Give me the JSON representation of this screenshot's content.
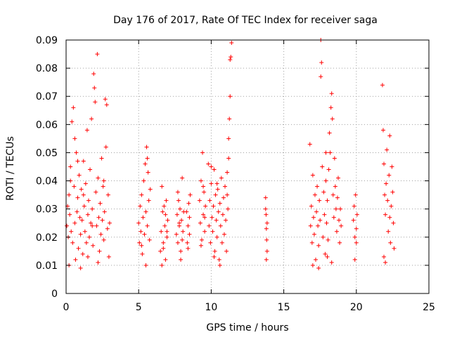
{
  "chart_data": {
    "type": "scatter",
    "title": "Day 176 of 2017, Rate Of TEC Index for receiver saga",
    "xlabel": "GPS time / hours",
    "ylabel": "ROTI / TECUs",
    "xlim": [
      0,
      25
    ],
    "ylim": [
      0,
      0.09
    ],
    "xticks": [
      0,
      5,
      10,
      15,
      20,
      25
    ],
    "xtick_labels": [
      "0",
      "5",
      "10",
      "15",
      "20",
      "25"
    ],
    "yticks": [
      0,
      0.01,
      0.02,
      0.03,
      0.04,
      0.05,
      0.06,
      0.07,
      0.08,
      0.09
    ],
    "ytick_labels": [
      "0",
      "0.01",
      "0.02",
      "0.03",
      "0.04",
      "0.05",
      "0.06",
      "0.07",
      "0.08",
      "0.09"
    ],
    "grid": true,
    "marker": "+",
    "marker_color": "#ff0000",
    "series": [
      {
        "name": "",
        "points": [
          [
            0.05,
            0.024
          ],
          [
            0.1,
            0.031
          ],
          [
            0.15,
            0.02
          ],
          [
            0.2,
            0.035
          ],
          [
            0.25,
            0.028
          ],
          [
            0.3,
            0.045
          ],
          [
            0.35,
            0.022
          ],
          [
            0.4,
            0.061
          ],
          [
            0.45,
            0.018
          ],
          [
            0.5,
            0.066
          ],
          [
            0.55,
            0.038
          ],
          [
            0.6,
            0.025
          ],
          [
            0.65,
            0.012
          ],
          [
            0.7,
            0.05
          ],
          [
            0.75,
            0.029
          ],
          [
            0.8,
            0.034
          ],
          [
            0.85,
            0.016
          ],
          [
            0.9,
            0.042
          ],
          [
            0.95,
            0.027
          ],
          [
            1.0,
            0.021
          ],
          [
            1.05,
            0.037
          ],
          [
            1.1,
            0.026
          ],
          [
            1.15,
            0.014
          ],
          [
            1.2,
            0.047
          ],
          [
            1.25,
            0.031
          ],
          [
            1.3,
            0.022
          ],
          [
            1.35,
            0.039
          ],
          [
            1.4,
            0.018
          ],
          [
            1.45,
            0.058
          ],
          [
            1.5,
            0.028
          ],
          [
            1.55,
            0.033
          ],
          [
            1.6,
            0.02
          ],
          [
            1.65,
            0.044
          ],
          [
            1.7,
            0.025
          ],
          [
            1.75,
            0.062
          ],
          [
            1.8,
            0.03
          ],
          [
            1.85,
            0.017
          ],
          [
            1.9,
            0.078
          ],
          [
            1.95,
            0.073
          ],
          [
            2.0,
            0.068
          ],
          [
            2.05,
            0.036
          ],
          [
            2.1,
            0.024
          ],
          [
            2.15,
            0.085
          ],
          [
            2.2,
            0.041
          ],
          [
            2.25,
            0.027
          ],
          [
            2.3,
            0.015
          ],
          [
            2.35,
            0.032
          ],
          [
            2.4,
            0.021
          ],
          [
            2.45,
            0.048
          ],
          [
            2.5,
            0.026
          ],
          [
            2.55,
            0.038
          ],
          [
            2.6,
            0.019
          ],
          [
            2.65,
            0.029
          ],
          [
            2.7,
            0.069
          ],
          [
            2.75,
            0.052
          ],
          [
            2.8,
            0.067
          ],
          [
            2.85,
            0.023
          ],
          [
            2.9,
            0.035
          ],
          [
            2.95,
            0.013
          ],
          [
            3.0,
            0.025
          ],
          [
            0.2,
            0.01
          ],
          [
            0.6,
            0.055
          ],
          [
            1.0,
            0.009
          ],
          [
            1.5,
            0.013
          ],
          [
            2.2,
            0.011
          ],
          [
            2.6,
            0.04
          ],
          [
            0.3,
            0.04
          ],
          [
            0.8,
            0.047
          ],
          [
            1.2,
            0.035
          ],
          [
            1.8,
            0.024
          ],
          [
            5.0,
            0.025
          ],
          [
            5.05,
            0.018
          ],
          [
            5.1,
            0.031
          ],
          [
            5.15,
            0.022
          ],
          [
            5.2,
            0.035
          ],
          [
            5.25,
            0.014
          ],
          [
            5.3,
            0.027
          ],
          [
            5.35,
            0.04
          ],
          [
            5.4,
            0.021
          ],
          [
            5.45,
            0.046
          ],
          [
            5.5,
            0.029
          ],
          [
            5.55,
            0.052
          ],
          [
            5.6,
            0.024
          ],
          [
            5.65,
            0.043
          ],
          [
            5.7,
            0.033
          ],
          [
            5.75,
            0.019
          ],
          [
            5.8,
            0.037
          ],
          [
            5.5,
            0.01
          ],
          [
            5.2,
            0.017
          ],
          [
            5.6,
            0.048
          ],
          [
            6.5,
            0.015
          ],
          [
            6.55,
            0.022
          ],
          [
            6.6,
            0.01
          ],
          [
            6.65,
            0.029
          ],
          [
            6.7,
            0.018
          ],
          [
            6.75,
            0.031
          ],
          [
            6.8,
            0.024
          ],
          [
            6.85,
            0.012
          ],
          [
            6.9,
            0.033
          ],
          [
            6.95,
            0.02
          ],
          [
            7.0,
            0.026
          ],
          [
            6.6,
            0.038
          ],
          [
            6.7,
            0.016
          ],
          [
            6.85,
            0.028
          ],
          [
            6.95,
            0.022
          ],
          [
            7.6,
            0.021
          ],
          [
            7.65,
            0.028
          ],
          [
            7.7,
            0.018
          ],
          [
            7.75,
            0.033
          ],
          [
            7.8,
            0.024
          ],
          [
            7.85,
            0.03
          ],
          [
            7.9,
            0.015
          ],
          [
            7.95,
            0.026
          ],
          [
            8.0,
            0.041
          ],
          [
            8.05,
            0.022
          ],
          [
            8.1,
            0.029
          ],
          [
            7.9,
            0.012
          ],
          [
            7.7,
            0.036
          ],
          [
            8.0,
            0.019
          ],
          [
            7.8,
            0.025
          ],
          [
            8.3,
            0.029
          ],
          [
            8.35,
            0.018
          ],
          [
            8.4,
            0.024
          ],
          [
            8.45,
            0.032
          ],
          [
            8.5,
            0.021
          ],
          [
            8.55,
            0.035
          ],
          [
            8.4,
            0.016
          ],
          [
            8.5,
            0.027
          ],
          [
            9.2,
            0.033
          ],
          [
            9.25,
            0.025
          ],
          [
            9.3,
            0.04
          ],
          [
            9.35,
            0.019
          ],
          [
            9.4,
            0.05
          ],
          [
            9.45,
            0.028
          ],
          [
            9.5,
            0.036
          ],
          [
            9.55,
            0.022
          ],
          [
            9.6,
            0.031
          ],
          [
            9.3,
            0.017
          ],
          [
            9.45,
            0.038
          ],
          [
            9.55,
            0.027
          ],
          [
            9.8,
            0.046
          ],
          [
            9.85,
            0.024
          ],
          [
            9.9,
            0.033
          ],
          [
            9.95,
            0.018
          ],
          [
            10.0,
            0.039
          ],
          [
            10.05,
            0.027
          ],
          [
            10.1,
            0.022
          ],
          [
            10.15,
            0.031
          ],
          [
            10.2,
            0.044
          ],
          [
            10.25,
            0.015
          ],
          [
            10.3,
            0.035
          ],
          [
            10.35,
            0.026
          ],
          [
            10.4,
            0.02
          ],
          [
            10.45,
            0.037
          ],
          [
            10.5,
            0.029
          ],
          [
            10.55,
            0.012
          ],
          [
            10.6,
            0.032
          ],
          [
            10.65,
            0.024
          ],
          [
            10.7,
            0.041
          ],
          [
            10.75,
            0.018
          ],
          [
            10.8,
            0.028
          ],
          [
            10.85,
            0.034
          ],
          [
            10.9,
            0.021
          ],
          [
            10.95,
            0.038
          ],
          [
            11.0,
            0.026
          ],
          [
            11.05,
            0.015
          ],
          [
            11.1,
            0.043
          ],
          [
            11.15,
            0.03
          ],
          [
            11.2,
            0.055
          ],
          [
            11.25,
            0.062
          ],
          [
            11.3,
            0.07
          ],
          [
            11.35,
            0.084
          ],
          [
            11.4,
            0.089
          ],
          [
            11.3,
            0.083
          ],
          [
            11.2,
            0.048
          ],
          [
            11.1,
            0.035
          ],
          [
            10.6,
            0.01
          ],
          [
            10.2,
            0.013
          ],
          [
            10.0,
            0.045
          ],
          [
            10.4,
            0.039
          ],
          [
            13.75,
            0.034
          ],
          [
            13.78,
            0.028
          ],
          [
            13.8,
            0.023
          ],
          [
            13.82,
            0.019
          ],
          [
            13.85,
            0.015
          ],
          [
            13.8,
            0.012
          ],
          [
            13.75,
            0.03
          ],
          [
            13.85,
            0.025
          ],
          [
            16.8,
            0.053
          ],
          [
            16.85,
            0.024
          ],
          [
            16.9,
            0.031
          ],
          [
            16.95,
            0.018
          ],
          [
            17.0,
            0.042
          ],
          [
            17.05,
            0.027
          ],
          [
            17.1,
            0.021
          ],
          [
            17.15,
            0.035
          ],
          [
            17.2,
            0.012
          ],
          [
            17.25,
            0.029
          ],
          [
            17.3,
            0.038
          ],
          [
            17.35,
            0.024
          ],
          [
            17.4,
            0.017
          ],
          [
            17.45,
            0.033
          ],
          [
            17.5,
            0.026
          ],
          [
            17.55,
            0.09
          ],
          [
            17.6,
            0.082
          ],
          [
            17.55,
            0.077
          ],
          [
            17.65,
            0.045
          ],
          [
            17.7,
            0.02
          ],
          [
            17.75,
            0.036
          ],
          [
            17.8,
            0.028
          ],
          [
            17.85,
            0.014
          ],
          [
            17.9,
            0.04
          ],
          [
            17.95,
            0.025
          ],
          [
            18.0,
            0.033
          ],
          [
            18.05,
            0.019
          ],
          [
            18.1,
            0.044
          ],
          [
            18.15,
            0.057
          ],
          [
            18.2,
            0.05
          ],
          [
            18.25,
            0.066
          ],
          [
            18.3,
            0.071
          ],
          [
            18.35,
            0.062
          ],
          [
            18.4,
            0.035
          ],
          [
            18.45,
            0.027
          ],
          [
            18.5,
            0.048
          ],
          [
            18.55,
            0.038
          ],
          [
            18.6,
            0.03
          ],
          [
            18.65,
            0.022
          ],
          [
            18.7,
            0.034
          ],
          [
            18.75,
            0.041
          ],
          [
            18.8,
            0.026
          ],
          [
            18.85,
            0.018
          ],
          [
            18.9,
            0.03
          ],
          [
            18.95,
            0.024
          ],
          [
            17.0,
            0.01
          ],
          [
            17.4,
            0.009
          ],
          [
            18.0,
            0.013
          ],
          [
            18.3,
            0.011
          ],
          [
            17.9,
            0.05
          ],
          [
            19.8,
            0.026
          ],
          [
            19.85,
            0.031
          ],
          [
            19.9,
            0.02
          ],
          [
            19.95,
            0.035
          ],
          [
            20.0,
            0.023
          ],
          [
            20.05,
            0.028
          ],
          [
            19.9,
            0.012
          ],
          [
            20.0,
            0.018
          ],
          [
            21.8,
            0.074
          ],
          [
            21.85,
            0.058
          ],
          [
            21.9,
            0.046
          ],
          [
            21.95,
            0.035
          ],
          [
            22.0,
            0.028
          ],
          [
            22.05,
            0.039
          ],
          [
            22.1,
            0.051
          ],
          [
            22.15,
            0.033
          ],
          [
            22.2,
            0.022
          ],
          [
            22.25,
            0.042
          ],
          [
            22.3,
            0.027
          ],
          [
            22.35,
            0.018
          ],
          [
            22.4,
            0.031
          ],
          [
            22.45,
            0.045
          ],
          [
            22.5,
            0.036
          ],
          [
            22.55,
            0.025
          ],
          [
            22.6,
            0.016
          ],
          [
            21.9,
            0.013
          ],
          [
            22.0,
            0.011
          ],
          [
            22.3,
            0.056
          ]
        ]
      }
    ]
  }
}
